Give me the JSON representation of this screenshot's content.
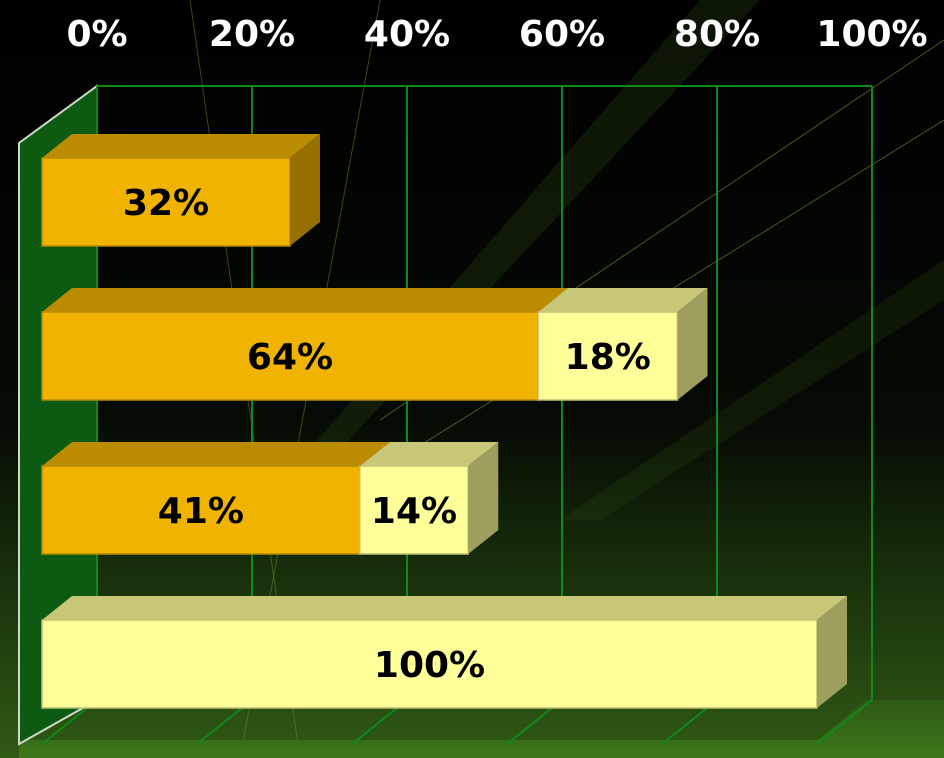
{
  "chart_data": {
    "type": "bar",
    "orientation": "horizontal",
    "stacked": true,
    "style": "3d",
    "categories": [
      "",
      "",
      "",
      ""
    ],
    "series": [
      {
        "values": [
          32,
          64,
          41,
          0
        ],
        "labels": [
          "32%",
          "64%",
          "41%",
          ""
        ]
      },
      {
        "values": [
          0,
          18,
          14,
          100
        ],
        "labels": [
          "",
          "18%",
          "14%",
          "100%"
        ]
      }
    ],
    "xlim": [
      0,
      100
    ],
    "x_ticks": [
      "0%",
      "20%",
      "40%",
      "60%",
      "80%",
      "100%"
    ],
    "x_axis_position": "top",
    "grid": true,
    "title": "",
    "xlabel": "",
    "ylabel": ""
  },
  "colors": {
    "background": "#000000",
    "series_dark": "#f0b400",
    "series_light": "#ffff99",
    "grid": "#0f8a1a",
    "wall": "#0d5a12",
    "tick_text": "#ffffff",
    "bar_text": "#000000"
  }
}
